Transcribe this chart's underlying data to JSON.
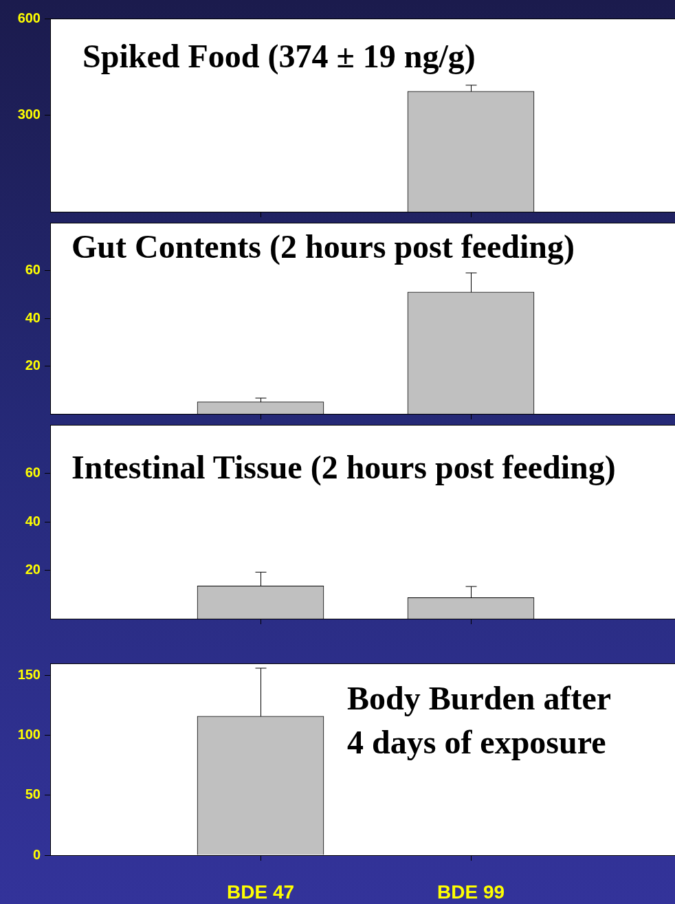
{
  "chart_data": [
    {
      "type": "bar",
      "title": "Spiked Food (374 ± 19 ng/g)",
      "categories": [
        null,
        null
      ],
      "values": [
        null,
        374
      ],
      "errors": [
        null,
        19
      ],
      "color": "#c0c0c0",
      "ylim": [
        0,
        600
      ],
      "yticks": [
        300,
        600
      ],
      "tick_labels": "y"
    },
    {
      "type": "bar",
      "title": "Gut Contents (2 hours post feeding)",
      "categories": [
        null,
        null
      ],
      "values": [
        5,
        51
      ],
      "errors": [
        1.6,
        8
      ],
      "color": "#c0c0c0",
      "ylim": [
        0,
        80
      ],
      "yticks": [
        20,
        40,
        60
      ],
      "tick_labels": "y"
    },
    {
      "type": "bar",
      "title": "Intestinal Tissue (2 hours post feeding)",
      "categories": [
        null,
        null
      ],
      "values": [
        13.5,
        8.7
      ],
      "errors": [
        5.7,
        4.6
      ],
      "color": "#c0c0c0",
      "ylim": [
        0,
        80
      ],
      "yticks": [
        20,
        40,
        60
      ],
      "tick_labels": "y"
    },
    {
      "type": "bar",
      "title": "Body Burden after 4 days of exposure",
      "categories": [
        "BDE 47",
        "BDE 99"
      ],
      "values": [
        116,
        null
      ],
      "errors": [
        40,
        null
      ],
      "color": "#c0c0c0",
      "ylim": [
        0,
        160
      ],
      "yticks": [
        0,
        50,
        100,
        150
      ]
    }
  ]
}
